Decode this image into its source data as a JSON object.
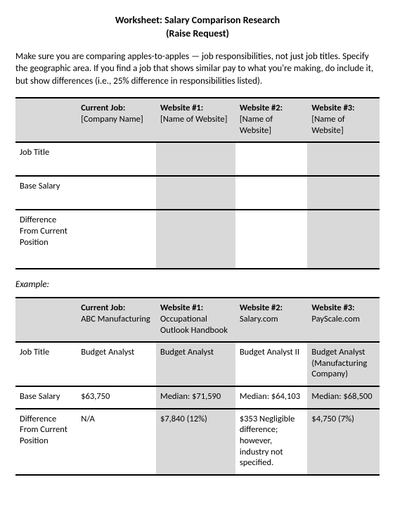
{
  "title_line1": "Worksheet: Salary Comparison Research",
  "title_line2": "(Raise Request)",
  "intro": "Make sure you are comparing apples-to-apples — job responsibilities, not just job titles. Specify the geographic area. If you find a job that shows similar pay to what you're making, do include it, but show differences (i.e., 25% difference in responsibilities listed).",
  "example_label": "Example:",
  "colors": {
    "shade": "#d9d9d9",
    "border": "#000000",
    "text": "#000000",
    "background": "#ffffff"
  },
  "blank_table": {
    "columns": [
      {
        "header": "",
        "sub": ""
      },
      {
        "header": "Current Job:",
        "sub": "[Company Name]"
      },
      {
        "header": "Website #1:",
        "sub": "[Name of Website]"
      },
      {
        "header": "Website #2:",
        "sub": "[Name of Website]"
      },
      {
        "header": "Website #3:",
        "sub": "[Name of Website]"
      }
    ],
    "rows": [
      {
        "label": "Job Title",
        "cells": [
          "",
          "",
          "",
          ""
        ]
      },
      {
        "label": "Base Salary",
        "cells": [
          "",
          "",
          "",
          ""
        ]
      },
      {
        "label": "Difference From Current Position",
        "cells": [
          "",
          "",
          "",
          ""
        ]
      }
    ]
  },
  "example_table": {
    "columns": [
      {
        "header": "",
        "sub": ""
      },
      {
        "header": "Current Job:",
        "sub": "ABC Manufacturing"
      },
      {
        "header": "Website #1:",
        "sub": "Occupational Outlook Handbook"
      },
      {
        "header": "Website #2:",
        "sub": "Salary.com"
      },
      {
        "header": "Website #3:",
        "sub": "PayScale.com"
      }
    ],
    "rows": [
      {
        "label": "Job Title",
        "cells": [
          "Budget Analyst",
          "Budget Analyst",
          "Budget Analyst II",
          "Budget Analyst (Manufacturing Company)"
        ]
      },
      {
        "label": "Base Salary",
        "cells": [
          "$63,750",
          "Median: $71,590",
          "Median: $64,103",
          "Median: $68,500"
        ]
      },
      {
        "label": "Difference From Current Position",
        "cells": [
          "N/A",
          "$7,840 (12%)",
          "$353 Negligible difference; however, industry not specified.",
          "$4,750 (7%)"
        ]
      }
    ]
  }
}
